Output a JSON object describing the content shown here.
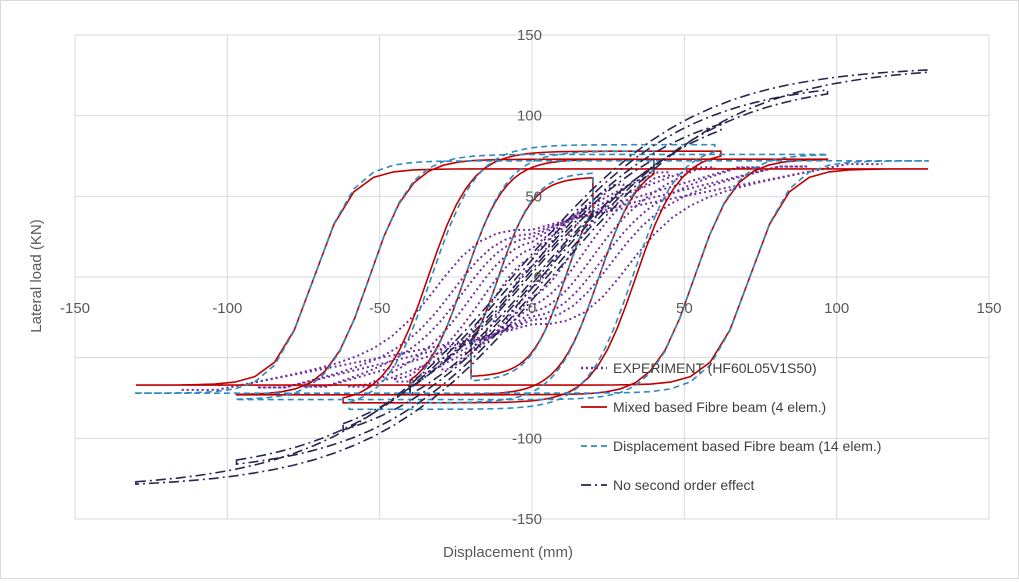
{
  "chart_data": {
    "type": "line",
    "title": "",
    "xlabel": "Displacement (mm)",
    "ylabel": "Lateral load (KN)",
    "xlim": [
      -150,
      150
    ],
    "ylim": [
      -150,
      150
    ],
    "x_ticks": [
      -150,
      -100,
      -50,
      0,
      50,
      100,
      150
    ],
    "y_ticks": [
      150,
      100,
      50,
      0,
      -50,
      -100,
      -150
    ],
    "x_tick_labels": [
      "-150",
      "-100",
      "-50",
      "0",
      "50",
      "100",
      "150"
    ],
    "y_tick_labels": [
      "150",
      "100",
      "50",
      "0",
      "",
      "-100",
      "-150"
    ],
    "grid": true,
    "legend_position": "bottom-right",
    "series": [
      {
        "name": "EXPERIMENT (HF60L05V1S50)",
        "color": "#7030a0",
        "dash": "dotted",
        "amplitudes": [
          15,
          30,
          45,
          60,
          75,
          90,
          115
        ],
        "peak_loads_pos": [
          40,
          58,
          65,
          68,
          68,
          67,
          60
        ],
        "peak_loads_neg": [
          -40,
          -58,
          -65,
          -68,
          -68,
          -70,
          -80
        ]
      },
      {
        "name": "Mixed based Fibre beam (4 elem.)",
        "color": "#c00000",
        "dash": "solid",
        "amplitudes": [
          20,
          40,
          62,
          97,
          130
        ],
        "peak_loads_pos": [
          62,
          73,
          78,
          73,
          66
        ],
        "peak_loads_neg": [
          -62,
          -73,
          -78,
          -73,
          -68
        ]
      },
      {
        "name": "Displacement based Fibre beam (14 elem.)",
        "color": "#2e8bc0",
        "dash": "dashed",
        "amplitudes": [
          20,
          40,
          60,
          97,
          130
        ],
        "peak_loads_pos": [
          65,
          78,
          82,
          75,
          72
        ],
        "peak_loads_neg": [
          -65,
          -78,
          -82,
          -77,
          -72
        ]
      },
      {
        "name": "No second order effect",
        "color": "#262650",
        "dash": "dash-dot",
        "amplitudes": [
          20,
          40,
          62,
          97,
          130
        ],
        "peak_loads_pos": [
          85,
          100,
          110,
          122,
          131
        ],
        "peak_loads_neg": [
          -85,
          -100,
          -110,
          -122,
          -131
        ]
      }
    ]
  }
}
